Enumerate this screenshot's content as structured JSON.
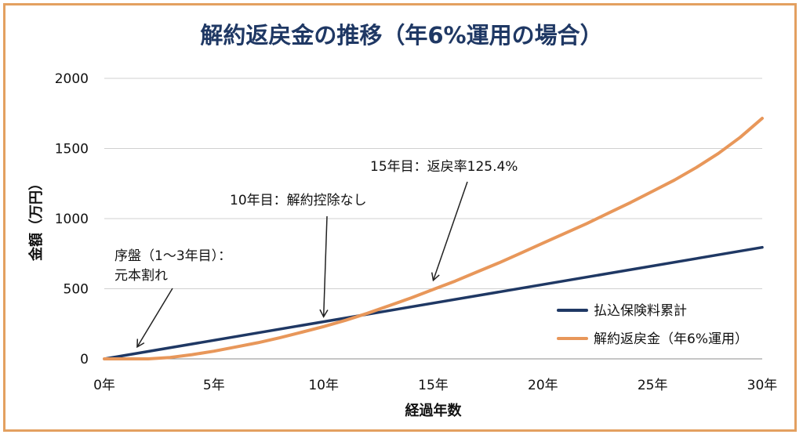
{
  "chart_data": {
    "type": "line",
    "title": "解約返戻金の推移（年6%運用の場合）",
    "xlabel": "経過年数",
    "ylabel": "金額（万円）",
    "xlim": [
      0,
      30
    ],
    "ylim": [
      0,
      2000
    ],
    "x_ticks": [
      0,
      5,
      10,
      15,
      20,
      25,
      30
    ],
    "x_tick_labels": [
      "0年",
      "5年",
      "10年",
      "15年",
      "20年",
      "25年",
      "30年"
    ],
    "y_ticks": [
      0,
      500,
      1000,
      1500,
      2000
    ],
    "y_tick_labels": [
      "0",
      "500",
      "1000",
      "1500",
      "2000"
    ],
    "grid": true,
    "legend_position": "bottom-right",
    "series": [
      {
        "name": "払込保険料累計",
        "color": "#1F3864",
        "x": [
          0,
          30
        ],
        "y": [
          0,
          795
        ]
      },
      {
        "name": "解約返戻金（年6%運用）",
        "color": "#E8975A",
        "x": [
          0,
          1,
          2,
          3,
          4,
          5,
          6,
          7,
          8,
          9,
          10,
          11,
          12,
          13,
          14,
          15,
          16,
          17,
          18,
          19,
          20,
          21,
          22,
          23,
          24,
          25,
          26,
          27,
          28,
          29,
          30
        ],
        "y": [
          0,
          0,
          0,
          10,
          30,
          55,
          85,
          115,
          150,
          190,
          230,
          275,
          325,
          380,
          435,
          495,
          555,
          620,
          685,
          755,
          825,
          895,
          965,
          1040,
          1115,
          1195,
          1275,
          1365,
          1465,
          1580,
          1715
        ]
      }
    ],
    "annotations": [
      {
        "line1": "序盤（1〜3年目）：",
        "line2": "元本割れ",
        "target_x": 1.5,
        "target_y": 85
      },
      {
        "line1": "10年目：解約控除なし",
        "line2": "",
        "target_x": 10,
        "target_y": 300
      },
      {
        "line1": "15年目：返戻率125.4%",
        "line2": "",
        "target_x": 15,
        "target_y": 560
      }
    ]
  }
}
